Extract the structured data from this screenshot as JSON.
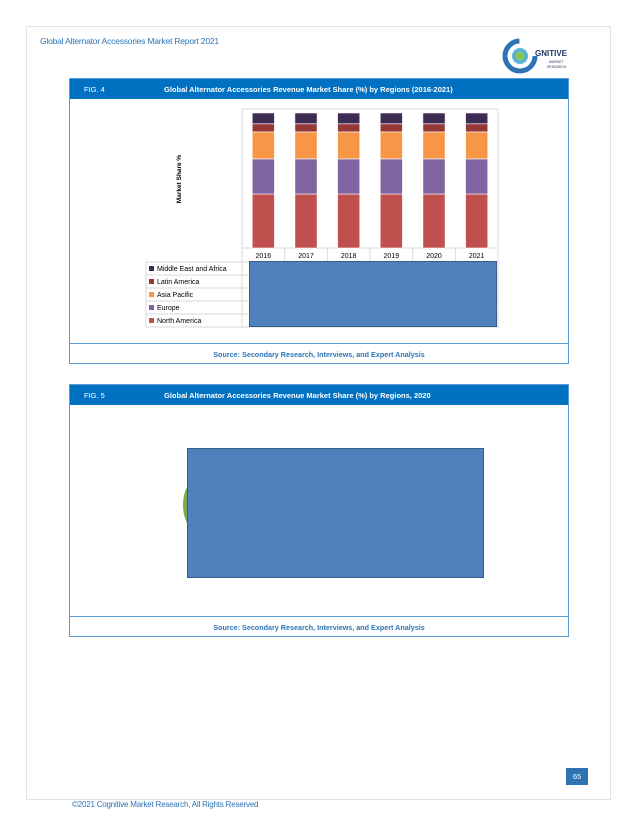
{
  "header": {
    "title": "Global Alternator Accessories Market Report 2021"
  },
  "logo": {
    "text_main": "GNITIVE",
    "text_sub1": "MARKET",
    "text_sub2": "RESEARCH"
  },
  "figure4": {
    "label": "FIG. 4",
    "title": "Global Alternator Accessories Revenue Market Share (%) by Regions (2016-2021)",
    "source": "Source: Secondary Research, Interviews, and Expert Analysis"
  },
  "figure5": {
    "label": "FIG. 5",
    "title": "Global Alternator Accessories Revenue Market Share (%) by Regions, 2020",
    "source": "Source: Secondary Research, Interviews, and Expert Analysis"
  },
  "chart_data": [
    {
      "type": "bar",
      "stacked": true,
      "ylabel": "Market Share %",
      "categories": [
        "2016",
        "2017",
        "2018",
        "2019",
        "2020",
        "2021"
      ],
      "ylim": [
        0,
        100
      ],
      "series": [
        {
          "name": "North America",
          "color": "#c0504d",
          "values": [
            40,
            40,
            40,
            40,
            40,
            40
          ]
        },
        {
          "name": "Europe",
          "color": "#8064a2",
          "values": [
            26,
            26,
            26,
            26,
            26,
            26
          ]
        },
        {
          "name": "Asia Pacific",
          "color": "#f79646",
          "values": [
            20,
            20,
            20,
            20,
            20,
            20
          ]
        },
        {
          "name": "Latin America",
          "color": "#953735",
          "values": [
            6,
            6,
            6,
            6,
            6,
            6
          ]
        },
        {
          "name": "Middle East and Africa",
          "color": "#3d2b52",
          "values": [
            8,
            8,
            8,
            8,
            8,
            8
          ]
        }
      ],
      "legend": [
        "Middle East and Africa",
        "Latin America",
        "Asia Pacific",
        "Europe",
        "North America"
      ],
      "legend_position": "bottom-left"
    }
  ],
  "page_number": "65",
  "footer": {
    "text": "©2021 Cognitive Market Research, All Rights Reserved"
  },
  "colors": {
    "accent": "#0070c0",
    "text_blue": "#2e74b5",
    "overlay": "#4f81bd"
  }
}
